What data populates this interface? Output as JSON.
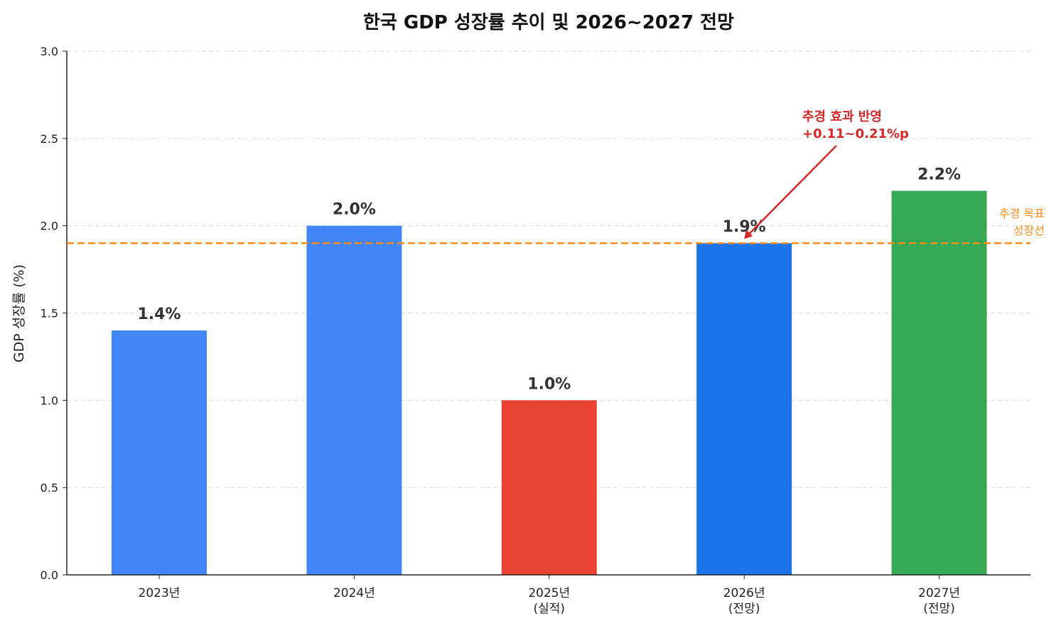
{
  "chart_data": {
    "type": "bar",
    "title": "한국 GDP 성장률 추이 및 2026~2027 전망",
    "xlabel": "",
    "ylabel": "GDP 성장률 (%)",
    "ylim": [
      0,
      3.0
    ],
    "yticks": [
      "0.0",
      "0.5",
      "1.0",
      "1.5",
      "2.0",
      "2.5",
      "3.0"
    ],
    "grid": "horizontal dashed",
    "categories": [
      [
        "2023년"
      ],
      [
        "2024년"
      ],
      [
        "2025년",
        "(실적)"
      ],
      [
        "2026년",
        "(전망)"
      ],
      [
        "2027년",
        "(전망)"
      ]
    ],
    "values": [
      1.4,
      2.0,
      1.0,
      1.9,
      2.2
    ],
    "data_labels": [
      "1.4%",
      "2.0%",
      "1.0%",
      "1.9%",
      "2.2%"
    ],
    "colors": [
      "#4285F4",
      "#4285F4",
      "#EA4335",
      "#1A73E8",
      "#34A853"
    ],
    "reference_line": {
      "value": 1.9,
      "label": [
        "추경 목표",
        "성장선"
      ],
      "color": "#FF8C1A"
    },
    "annotation": {
      "lines": [
        "추경 효과 반영",
        "+0.11~0.21%p"
      ],
      "target_category": 3,
      "target_value": 1.9,
      "color": "#D62728"
    }
  }
}
